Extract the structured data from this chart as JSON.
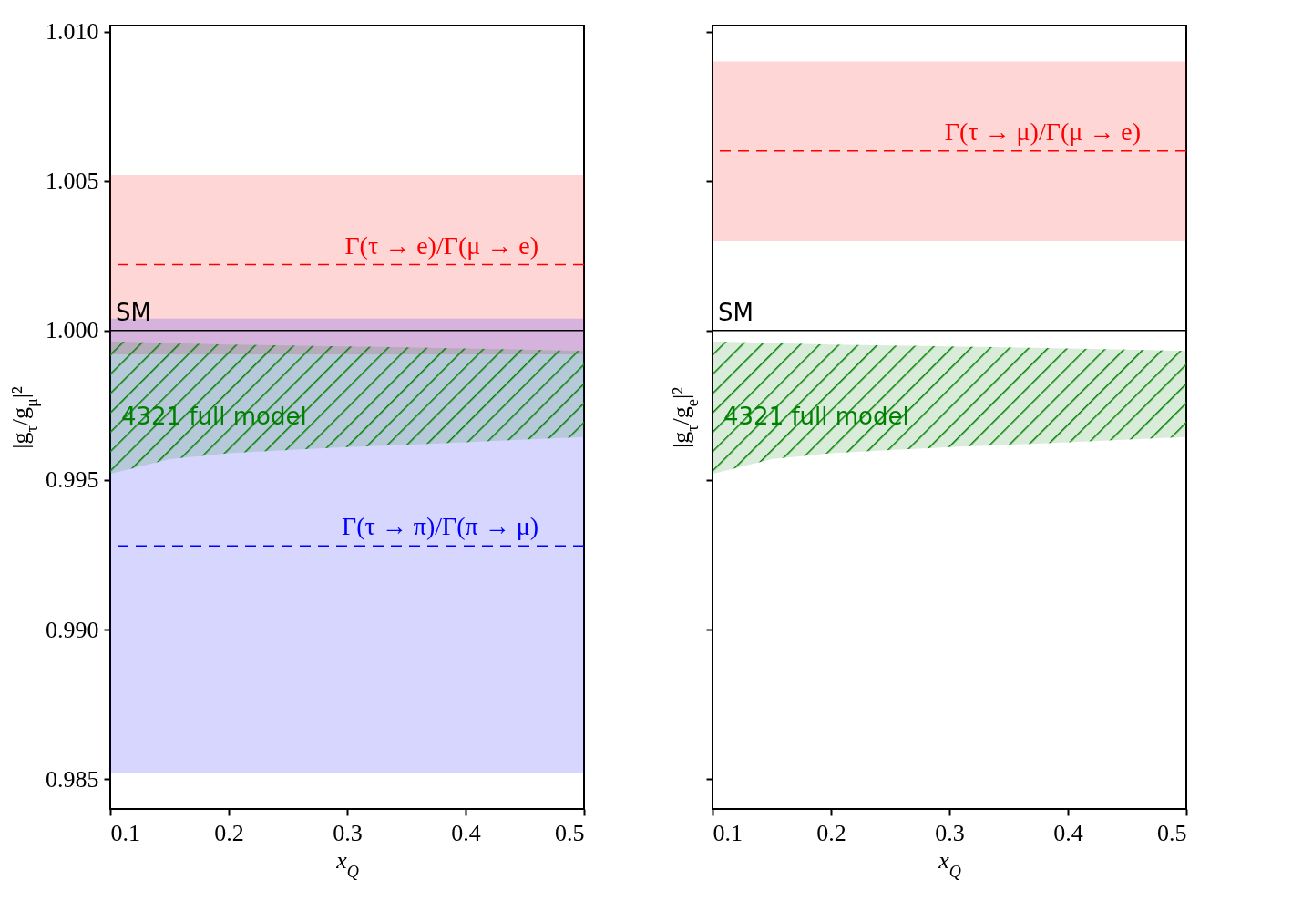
{
  "chart_data": [
    {
      "type": "area",
      "xlabel": "x$_{Q}$",
      "ylabel": "|g$_{τ}$/g$_{μ}$|²",
      "xlim": [
        0.1,
        0.5
      ],
      "ylim": [
        0.984,
        1.0102
      ],
      "xticks": [
        0.1,
        0.2,
        0.3,
        0.4,
        0.5
      ],
      "yticks": [
        {
          "value": 0.985,
          "label": "0.985"
        },
        {
          "value": 0.99,
          "label": "0.990"
        },
        {
          "value": 0.995,
          "label": "0.995"
        },
        {
          "value": 1,
          "label": "1.000"
        },
        {
          "value": 1.005,
          "label": "1.005"
        },
        {
          "value": 1.01,
          "label": "1.010"
        }
      ],
      "series": [
        {
          "name": "4321 full model",
          "color": "#008000",
          "x": [
            0.1,
            0.15,
            0.2,
            0.25,
            0.3,
            0.35,
            0.4,
            0.45,
            0.5
          ],
          "values": [
            null,
            null,
            null,
            null,
            null,
            null,
            null,
            null,
            null
          ],
          "upper": [
            0.99964,
            0.99958,
            0.99953,
            0.9995,
            0.99947,
            0.99944,
            0.9994,
            0.99936,
            0.99932
          ],
          "lower": [
            0.9952,
            0.9957,
            0.9959,
            0.996,
            0.9961,
            0.99618,
            0.99626,
            0.99635,
            0.99644
          ]
        }
      ],
      "bands": [
        {
          "axis": "y",
          "from": 0.9992,
          "to": 1.0052,
          "color": "#ff0000"
        },
        {
          "axis": "y",
          "from": 0.9852,
          "to": 1.0004,
          "color": "#0000ff"
        }
      ],
      "ref_lines": [
        {
          "axis": "y",
          "value": 1.0022,
          "label": "Γ(τ → e)/Γ(μ → e)",
          "color": "#ff0000",
          "line_style": "dashed"
        },
        {
          "axis": "y",
          "value": 0.9928,
          "label": "Γ(τ → π)/Γ(π → μ)",
          "color": "#0000ff",
          "line_style": "dashed"
        },
        {
          "axis": "y",
          "value": 1,
          "label": "SM",
          "color": "#000000",
          "line_style": "solid"
        }
      ],
      "grid": false
    },
    {
      "type": "area",
      "xlabel": "x$_{Q}$",
      "ylabel": "|g$_{τ}$/g$_{e}$|²",
      "xlim": [
        0.1,
        0.5
      ],
      "ylim": [
        0.984,
        1.0102
      ],
      "xticks": [
        0.1,
        0.2,
        0.3,
        0.4,
        0.5
      ],
      "yticks": [
        0.985,
        0.99,
        0.995,
        1,
        1.005,
        1.01
      ],
      "tick_labels": "x",
      "series": [
        {
          "name": "4321 full model",
          "color": "#008000",
          "x": [
            0.1,
            0.15,
            0.2,
            0.25,
            0.3,
            0.35,
            0.4,
            0.45,
            0.5
          ],
          "values": [
            null,
            null,
            null,
            null,
            null,
            null,
            null,
            null,
            null
          ],
          "upper": [
            0.99964,
            0.99958,
            0.99953,
            0.9995,
            0.99947,
            0.99944,
            0.9994,
            0.99936,
            0.99932
          ],
          "lower": [
            0.9952,
            0.9957,
            0.9959,
            0.996,
            0.9961,
            0.99618,
            0.99626,
            0.99635,
            0.99644
          ]
        }
      ],
      "bands": [
        {
          "axis": "y",
          "from": 1.003,
          "to": 1.009,
          "color": "#ff0000"
        }
      ],
      "ref_lines": [
        {
          "axis": "y",
          "value": 1.006,
          "label": "Γ(τ → μ)/Γ(μ → e)",
          "color": "#ff0000",
          "line_style": "dashed"
        },
        {
          "axis": "y",
          "value": 1,
          "label": "SM",
          "color": "#000000",
          "line_style": "solid"
        }
      ],
      "grid": false
    }
  ]
}
